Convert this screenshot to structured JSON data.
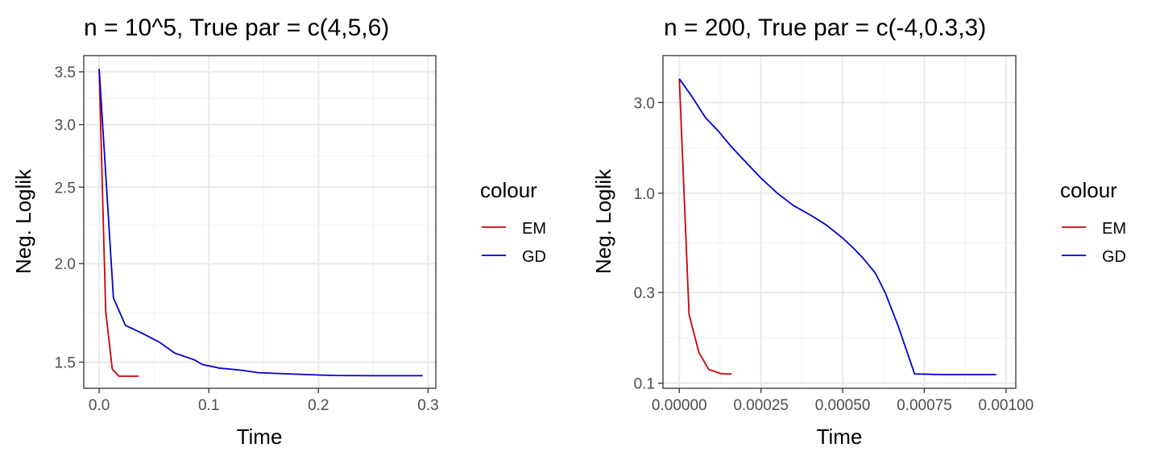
{
  "chart_data": [
    {
      "type": "line",
      "title": "n = 10^5, True par = c(4,5,6)",
      "xlabel": "Time",
      "ylabel": "Neg. Loglik",
      "y_scale": "log",
      "grid": true,
      "xlim": [
        -0.014,
        0.307
      ],
      "ylim": [
        1.39,
        3.67
      ],
      "x_ticks": [
        0.0,
        0.1,
        0.2,
        0.3
      ],
      "x_tick_labels": [
        "0.0",
        "0.1",
        "0.2",
        "0.3"
      ],
      "y_ticks": [
        1.5,
        2.0,
        2.5,
        3.0,
        3.5
      ],
      "y_tick_labels": [
        "1.5",
        "2.0",
        "2.5",
        "3.0",
        "3.5"
      ],
      "legend": {
        "title": "colour",
        "position": "right",
        "entries": [
          "EM",
          "GD"
        ]
      },
      "series": [
        {
          "name": "EM",
          "color": "#cc0000",
          "x": [
            0.0,
            0.006,
            0.012,
            0.018,
            0.024,
            0.03,
            0.036
          ],
          "y": [
            3.53,
            1.74,
            1.47,
            1.44,
            1.44,
            1.44,
            1.44
          ]
        },
        {
          "name": "GD",
          "color": "#0000cc",
          "x": [
            0.0,
            0.013,
            0.024,
            0.04,
            0.055,
            0.069,
            0.087,
            0.094,
            0.109,
            0.13,
            0.145,
            0.17,
            0.2,
            0.215,
            0.25,
            0.295
          ],
          "y": [
            3.53,
            1.81,
            1.67,
            1.63,
            1.59,
            1.54,
            1.51,
            1.49,
            1.475,
            1.465,
            1.455,
            1.45,
            1.445,
            1.443,
            1.442,
            1.442
          ]
        }
      ]
    },
    {
      "type": "line",
      "title": "n = 200, True par = c(-4,0.3,3)",
      "xlabel": "Time",
      "ylabel": "Neg. Loglik",
      "y_scale": "log",
      "grid": true,
      "xlim": [
        -5e-05,
        0.00103
      ],
      "ylim": [
        0.094,
        5.3
      ],
      "x_ticks": [
        0.0,
        0.00025,
        0.0005,
        0.00075,
        0.001
      ],
      "x_tick_labels": [
        "0.00000",
        "0.00025",
        "0.00050",
        "0.00075",
        "0.00100"
      ],
      "y_ticks": [
        0.1,
        0.3,
        1.0,
        3.0
      ],
      "y_tick_labels": [
        "0.1",
        "0.3",
        "1.0",
        "3.0"
      ],
      "legend": {
        "title": "colour",
        "position": "right",
        "entries": [
          "EM",
          "GD"
        ]
      },
      "series": [
        {
          "name": "EM",
          "color": "#cc0000",
          "x": [
            0.0,
            3e-05,
            6e-05,
            9e-05,
            0.00013,
            0.00016
          ],
          "y": [
            4.0,
            0.23,
            0.145,
            0.118,
            0.112,
            0.112
          ]
        },
        {
          "name": "GD",
          "color": "#0000cc",
          "x": [
            0.0,
            4e-05,
            8e-05,
            0.00012,
            0.00016,
            0.0002,
            0.00025,
            0.0003,
            0.00035,
            0.0004,
            0.00045,
            0.0005,
            0.00053,
            0.00056,
            0.0006,
            0.00063,
            0.00067,
            0.00072,
            0.0008,
            0.0009,
            0.00097
          ],
          "y": [
            4.0,
            3.2,
            2.5,
            2.12,
            1.75,
            1.48,
            1.2,
            1.0,
            0.86,
            0.77,
            0.68,
            0.58,
            0.52,
            0.46,
            0.38,
            0.3,
            0.2,
            0.112,
            0.111,
            0.111,
            0.111
          ]
        }
      ]
    }
  ]
}
